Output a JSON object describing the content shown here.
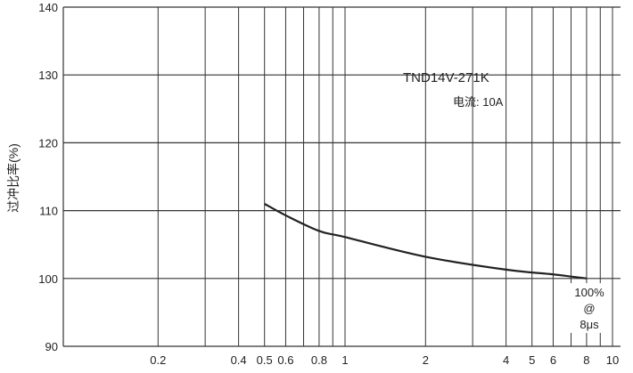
{
  "chart_data": {
    "type": "line",
    "title": "",
    "xlabel": "",
    "ylabel": "过冲比率(%)",
    "x_scale": "log",
    "xlim": [
      0.09,
      10
    ],
    "ylim": [
      90,
      140
    ],
    "grid": true,
    "x_ticks": [
      0.2,
      0.4,
      0.5,
      0.6,
      0.8,
      1,
      2,
      4,
      5,
      6,
      8,
      10
    ],
    "x_tick_labels": [
      "0.2",
      "0.4",
      "0.5",
      "0.6",
      "0.8",
      "1",
      "2",
      "4",
      "5",
      "6",
      "8",
      "10"
    ],
    "x_gridlines": [
      0.2,
      0.3,
      0.4,
      0.5,
      0.6,
      0.7,
      0.8,
      0.9,
      1,
      2,
      3,
      4,
      5,
      6,
      7,
      8,
      9,
      10
    ],
    "y_ticks": [
      90,
      100,
      110,
      120,
      130,
      140
    ],
    "y_tick_labels": [
      "90",
      "100",
      "110",
      "120",
      "130",
      "140"
    ],
    "series": [
      {
        "x": [
          0.5,
          0.6,
          0.8,
          1,
          2,
          4,
          6,
          8
        ],
        "y": [
          111,
          109.3,
          107,
          106.1,
          103.2,
          101.3,
          100.6,
          100
        ],
        "color": "#222222"
      }
    ],
    "annotations": {
      "model": "TND14V-271K",
      "current": "电流: 10A",
      "ref_line1": "100%",
      "ref_line2": "@",
      "ref_line3": "8μs"
    }
  }
}
